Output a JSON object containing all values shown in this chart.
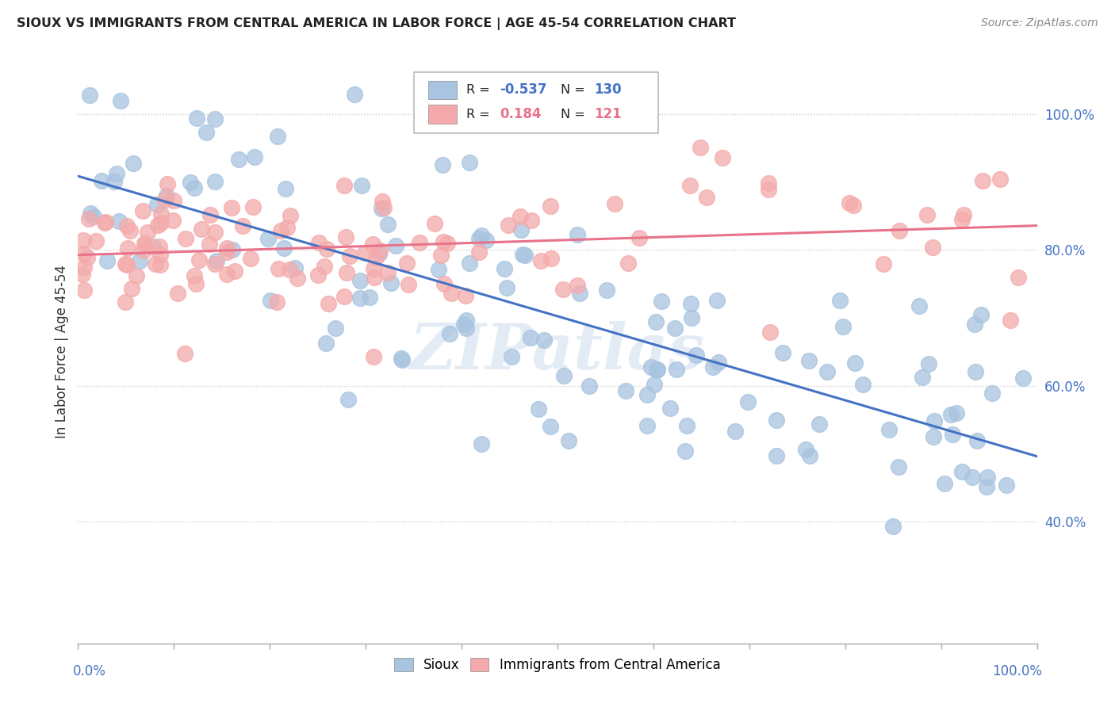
{
  "title": "SIOUX VS IMMIGRANTS FROM CENTRAL AMERICA IN LABOR FORCE | AGE 45-54 CORRELATION CHART",
  "source": "Source: ZipAtlas.com",
  "ylabel": "In Labor Force | Age 45-54",
  "watermark": "ZIPatlas",
  "legend_r_blue": "-0.537",
  "legend_n_blue": "130",
  "legend_r_pink": "0.184",
  "legend_n_pink": "121",
  "blue_color": "#a8c4e0",
  "pink_color": "#f4aaaa",
  "blue_line_color": "#4472C4",
  "pink_line_color": "#e8728a",
  "xlim": [
    0.0,
    1.0
  ],
  "ylim": [
    0.22,
    1.08
  ],
  "yticks": [
    0.4,
    0.6,
    0.8,
    1.0
  ],
  "blue_scatter_seed": 12,
  "pink_scatter_seed": 7,
  "n_blue": 130,
  "n_pink": 121,
  "blue_r": -0.537,
  "pink_r": 0.184,
  "blue_intercept": 0.91,
  "blue_slope": -0.38,
  "blue_noise": 0.09,
  "pink_intercept": 0.795,
  "pink_slope": 0.055,
  "pink_noise": 0.055
}
